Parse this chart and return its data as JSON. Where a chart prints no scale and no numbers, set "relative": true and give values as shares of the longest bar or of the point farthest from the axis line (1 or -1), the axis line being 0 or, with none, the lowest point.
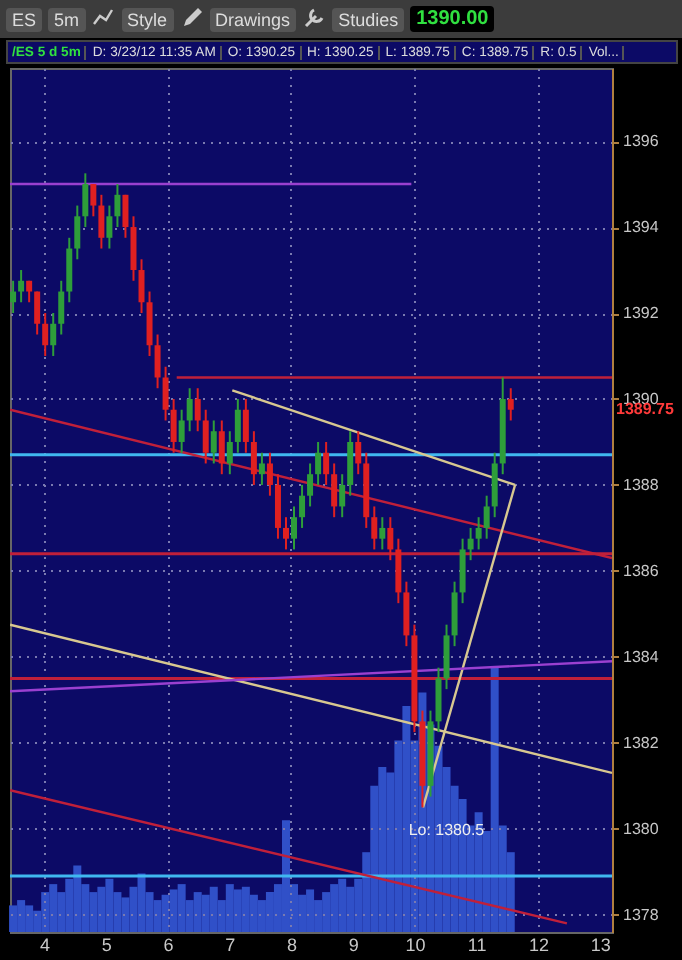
{
  "chart_data": [
    {
      "type": "candlestick",
      "title": "/ES 5 d 5m",
      "annotations": [
        "ES",
        "5m",
        "Style",
        "Drawings",
        "Studies",
        "1390.00",
        "D: 3/23/12 11:35 AM",
        "O: 1390.25",
        "H: 1390.25",
        "L: 1389.75",
        "C: 1389.75",
        "R: 0.5",
        "Vol...",
        {
          "text": "Lo: 1380.5",
          "x": 10.13,
          "y": 1380.5
        },
        "1389.75"
      ],
      "x": [
        3.5,
        3.63,
        3.76,
        3.89,
        4.02,
        4.15,
        4.28,
        4.41,
        4.54,
        4.67,
        4.8,
        4.93,
        5.06,
        5.19,
        5.32,
        5.45,
        5.58,
        5.71,
        5.84,
        5.97,
        6.1,
        6.23,
        6.36,
        6.49,
        6.62,
        6.75,
        6.88,
        7.01,
        7.14,
        7.27,
        7.4,
        7.53,
        7.66,
        7.79,
        7.92,
        8.05,
        8.18,
        8.31,
        8.44,
        8.57,
        8.7,
        8.83,
        8.96,
        9.09,
        9.22,
        9.35,
        9.48,
        9.61,
        9.74,
        9.87,
        10.0,
        10.13,
        10.26,
        10.39,
        10.52,
        10.65,
        10.78,
        10.91,
        11.04,
        11.17,
        11.3,
        11.43,
        11.56
      ],
      "ohlc": [
        [
          1392.25,
          1392.75,
          1392.0,
          1392.5
        ],
        [
          1392.5,
          1393.0,
          1392.25,
          1392.75
        ],
        [
          1392.75,
          1392.75,
          1392.25,
          1392.5
        ],
        [
          1392.5,
          1392.5,
          1391.5,
          1391.75
        ],
        [
          1391.75,
          1392.0,
          1391.0,
          1391.25
        ],
        [
          1391.25,
          1392.0,
          1391.0,
          1391.75
        ],
        [
          1391.75,
          1392.75,
          1391.5,
          1392.5
        ],
        [
          1392.5,
          1393.75,
          1392.25,
          1393.5
        ],
        [
          1393.5,
          1394.5,
          1393.25,
          1394.25
        ],
        [
          1394.25,
          1395.25,
          1394.0,
          1395.0
        ],
        [
          1395.0,
          1395.0,
          1394.25,
          1394.5
        ],
        [
          1394.5,
          1394.75,
          1393.5,
          1393.75
        ],
        [
          1393.75,
          1394.5,
          1393.5,
          1394.25
        ],
        [
          1394.25,
          1395.0,
          1394.0,
          1394.75
        ],
        [
          1394.75,
          1394.75,
          1393.75,
          1394.0
        ],
        [
          1394.0,
          1394.25,
          1392.75,
          1393.0
        ],
        [
          1393.0,
          1393.25,
          1392.0,
          1392.25
        ],
        [
          1392.25,
          1392.5,
          1391.0,
          1391.25
        ],
        [
          1391.25,
          1391.5,
          1390.25,
          1390.5
        ],
        [
          1390.5,
          1390.75,
          1389.5,
          1389.75
        ],
        [
          1389.75,
          1390.0,
          1388.75,
          1389.0
        ],
        [
          1389.0,
          1389.75,
          1388.75,
          1389.5
        ],
        [
          1389.5,
          1390.25,
          1389.25,
          1390.0
        ],
        [
          1390.0,
          1390.25,
          1389.25,
          1389.5
        ],
        [
          1389.5,
          1389.75,
          1388.5,
          1388.75
        ],
        [
          1388.75,
          1389.5,
          1388.5,
          1389.25
        ],
        [
          1389.25,
          1389.5,
          1388.25,
          1388.5
        ],
        [
          1388.5,
          1389.25,
          1388.25,
          1389.0
        ],
        [
          1389.0,
          1390.0,
          1388.75,
          1389.75
        ],
        [
          1389.75,
          1390.0,
          1388.75,
          1389.0
        ],
        [
          1389.0,
          1389.25,
          1388.0,
          1388.25
        ],
        [
          1388.25,
          1388.75,
          1388.0,
          1388.5
        ],
        [
          1388.5,
          1388.75,
          1387.75,
          1388.0
        ],
        [
          1388.0,
          1388.25,
          1386.75,
          1387.0
        ],
        [
          1387.0,
          1387.25,
          1386.5,
          1386.75
        ],
        [
          1386.75,
          1387.5,
          1386.5,
          1387.25
        ],
        [
          1387.25,
          1388.0,
          1387.0,
          1387.75
        ],
        [
          1387.75,
          1388.5,
          1387.5,
          1388.25
        ],
        [
          1388.25,
          1389.0,
          1388.0,
          1388.75
        ],
        [
          1388.75,
          1389.0,
          1388.0,
          1388.25
        ],
        [
          1388.25,
          1388.5,
          1387.25,
          1387.5
        ],
        [
          1387.5,
          1388.25,
          1387.25,
          1388.0
        ],
        [
          1388.0,
          1389.25,
          1387.75,
          1389.0
        ],
        [
          1389.0,
          1389.25,
          1388.25,
          1388.5
        ],
        [
          1388.5,
          1388.75,
          1387.0,
          1387.25
        ],
        [
          1387.25,
          1387.5,
          1386.5,
          1386.75
        ],
        [
          1386.75,
          1387.25,
          1386.5,
          1387.0
        ],
        [
          1387.0,
          1387.25,
          1386.25,
          1386.5
        ],
        [
          1386.5,
          1386.75,
          1385.25,
          1385.5
        ],
        [
          1385.5,
          1385.75,
          1384.25,
          1384.5
        ],
        [
          1384.5,
          1384.75,
          1382.25,
          1382.5
        ],
        [
          1382.5,
          1382.75,
          1380.5,
          1381.0
        ],
        [
          1381.0,
          1382.75,
          1380.75,
          1382.5
        ],
        [
          1382.5,
          1383.75,
          1382.25,
          1383.5
        ],
        [
          1383.5,
          1384.75,
          1383.25,
          1384.5
        ],
        [
          1384.5,
          1385.75,
          1384.25,
          1385.5
        ],
        [
          1385.5,
          1386.75,
          1385.25,
          1386.5
        ],
        [
          1386.5,
          1387.0,
          1386.25,
          1386.75
        ],
        [
          1386.75,
          1387.25,
          1386.5,
          1387.0
        ],
        [
          1387.0,
          1387.75,
          1386.75,
          1387.5
        ],
        [
          1387.5,
          1388.75,
          1387.25,
          1388.5
        ],
        [
          1388.5,
          1390.5,
          1388.25,
          1390.0
        ],
        [
          1390.0,
          1390.25,
          1389.5,
          1389.75
        ]
      ],
      "colors": [
        "#2e9e3a",
        "#2e9e3a",
        "#e02020",
        "#e02020",
        "#e02020",
        "#2e9e3a",
        "#2e9e3a",
        "#2e9e3a",
        "#2e9e3a",
        "#2e9e3a",
        "#e02020",
        "#e02020",
        "#2e9e3a",
        "#2e9e3a",
        "#e02020",
        "#e02020",
        "#e02020",
        "#e02020",
        "#e02020",
        "#e02020",
        "#e02020",
        "#2e9e3a",
        "#2e9e3a",
        "#e02020",
        "#e02020",
        "#2e9e3a",
        "#e02020",
        "#2e9e3a",
        "#2e9e3a",
        "#e02020",
        "#e02020",
        "#2e9e3a",
        "#e02020",
        "#e02020",
        "#e02020",
        "#2e9e3a",
        "#2e9e3a",
        "#2e9e3a",
        "#2e9e3a",
        "#e02020",
        "#e02020",
        "#2e9e3a",
        "#2e9e3a",
        "#e02020",
        "#e02020",
        "#e02020",
        "#2e9e3a",
        "#e02020",
        "#e02020",
        "#e02020",
        "#e02020",
        "#e02020",
        "#2e9e3a",
        "#2e9e3a",
        "#2e9e3a",
        "#2e9e3a",
        "#2e9e3a",
        "#2e9e3a",
        "#2e9e3a",
        "#2e9e3a",
        "#2e9e3a",
        "#2e9e3a",
        "#e02020"
      ],
      "series": [
        {
          "type": "line",
          "x": [
            3.45,
            9.95
          ],
          "values": [
            1395.0,
            1395.0
          ],
          "color": "#9a40d0"
        },
        {
          "type": "line",
          "x": [
            6.15,
            13.2
          ],
          "values": [
            1390.5,
            1390.5
          ],
          "color": "#c0203a"
        },
        {
          "type": "line",
          "x": [
            3.45,
            13.2
          ],
          "values": [
            1389.75,
            1386.3
          ],
          "color": "#c0203a"
        },
        {
          "type": "line",
          "x": [
            7.05,
            11.63
          ],
          "values": [
            1390.2,
            1388.0
          ],
          "color": "#d8c890"
        },
        {
          "type": "line",
          "x": [
            10.14,
            11.63
          ],
          "values": [
            1380.5,
            1388.0
          ],
          "color": "#d8c890"
        },
        {
          "type": "line",
          "x": [
            3.45,
            13.2
          ],
          "values": [
            1384.75,
            1381.3
          ],
          "color": "#d8c890"
        },
        {
          "type": "line",
          "x": [
            3.45,
            13.2
          ],
          "values": [
            1383.2,
            1383.9
          ],
          "color": "#9a40d0"
        },
        {
          "type": "line",
          "x": [
            3.45,
            12.47
          ],
          "values": [
            1380.9,
            1377.8
          ],
          "color": "#c0203a"
        }
      ],
      "ref_lines": [
        {
          "axis": "y",
          "value": 1388.7,
          "color": "#40b8f0"
        },
        {
          "axis": "y",
          "value": 1386.4,
          "color": "#c0203a"
        },
        {
          "axis": "y",
          "value": 1383.5,
          "color": "#c0203a"
        },
        {
          "axis": "y",
          "value": 1378.9,
          "color": "#40b8f0"
        }
      ],
      "xlim": [
        3.45,
        13.2
      ],
      "ylim": [
        1377.6,
        1397.7
      ],
      "xticks": [
        4,
        5,
        6,
        7,
        8,
        9,
        10,
        11,
        12,
        13
      ],
      "yticks": [
        1378,
        1380,
        1382,
        1384,
        1386,
        1388,
        1390,
        1392,
        1394,
        1396
      ],
      "grid": true,
      "tick_labels": "y"
    },
    {
      "type": "bar",
      "relative": true,
      "color": "#3050c8",
      "x": [
        3.5,
        3.63,
        3.76,
        3.89,
        4.02,
        4.15,
        4.28,
        4.41,
        4.54,
        4.67,
        4.8,
        4.93,
        5.06,
        5.19,
        5.32,
        5.45,
        5.58,
        5.71,
        5.84,
        5.97,
        6.1,
        6.23,
        6.36,
        6.49,
        6.62,
        6.75,
        6.88,
        7.01,
        7.14,
        7.27,
        7.4,
        7.53,
        7.66,
        7.79,
        7.92,
        8.05,
        8.18,
        8.31,
        8.44,
        8.57,
        8.7,
        8.83,
        8.96,
        9.09,
        9.22,
        9.35,
        9.48,
        9.61,
        9.74,
        9.87,
        10.0,
        10.13,
        10.26,
        10.39,
        10.52,
        10.65,
        10.78,
        10.91,
        11.04,
        11.17,
        11.3,
        11.43,
        11.56
      ],
      "values": [
        0.1,
        0.12,
        0.1,
        0.08,
        0.15,
        0.18,
        0.15,
        0.2,
        0.25,
        0.18,
        0.15,
        0.17,
        0.2,
        0.15,
        0.13,
        0.17,
        0.22,
        0.15,
        0.12,
        0.14,
        0.16,
        0.18,
        0.12,
        0.15,
        0.14,
        0.17,
        0.12,
        0.18,
        0.16,
        0.17,
        0.14,
        0.12,
        0.15,
        0.18,
        0.42,
        0.18,
        0.14,
        0.16,
        0.12,
        0.15,
        0.18,
        0.2,
        0.17,
        0.2,
        0.3,
        0.55,
        0.62,
        0.6,
        0.72,
        0.85,
        0.72,
        0.9,
        0.78,
        0.7,
        0.62,
        0.55,
        0.5,
        0.4,
        0.45,
        0.38,
        1,
        0.4,
        0.3
      ],
      "xlim": [
        3.45,
        13.2
      ],
      "xticks": [
        4,
        5,
        6,
        7,
        8,
        9,
        10,
        11,
        12,
        13
      ],
      "tick_labels": "x"
    }
  ]
}
